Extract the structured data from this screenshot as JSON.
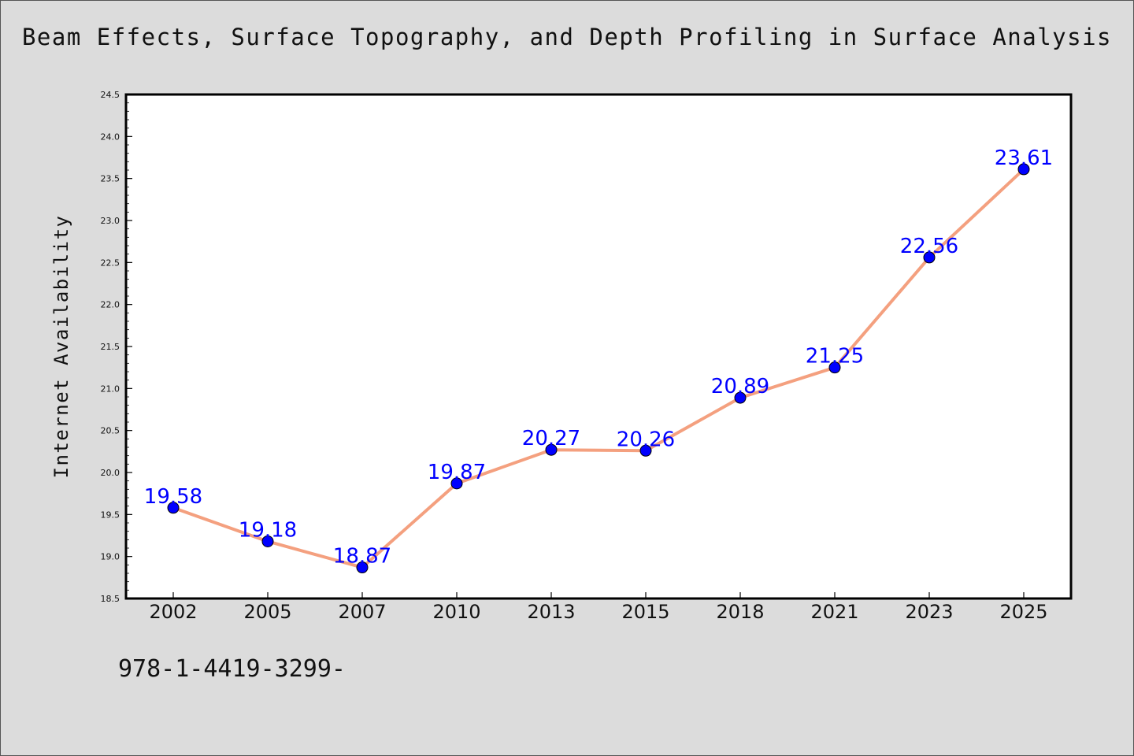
{
  "chart_data": {
    "type": "line",
    "title": "Beam Effects, Surface Topography, and Depth Profiling in Surface Analysis",
    "xlabel": "",
    "ylabel": "Internet Availability",
    "categories": [
      "2002",
      "2005",
      "2007",
      "2010",
      "2013",
      "2015",
      "2018",
      "2021",
      "2023",
      "2025"
    ],
    "series": [
      {
        "values": [
          19.58,
          19.18,
          18.87,
          19.87,
          20.27,
          20.26,
          20.89,
          21.25,
          22.56,
          23.61
        ],
        "data_labels": [
          "19.58",
          "19.18",
          "18.87",
          "19.87",
          "20.27",
          "20.26",
          "20.89",
          "21.25",
          "22.56",
          "23.61"
        ]
      }
    ],
    "ylim": [
      18.5,
      24.5
    ],
    "yticks": [
      "18.5",
      "19.0",
      "19.5",
      "20.0",
      "20.5",
      "21.0",
      "21.5",
      "22.0",
      "22.5",
      "23.0",
      "23.5",
      "24.0",
      "24.5"
    ],
    "grid": false,
    "legend": "none",
    "colors": {
      "line": "#f4a07f",
      "marker": "#0000ff",
      "data_label": "#0000ff",
      "background": "#dcdcdc",
      "plot_background": "#ffffff"
    }
  },
  "footer": {
    "code": "978-1-4419-3299-"
  }
}
